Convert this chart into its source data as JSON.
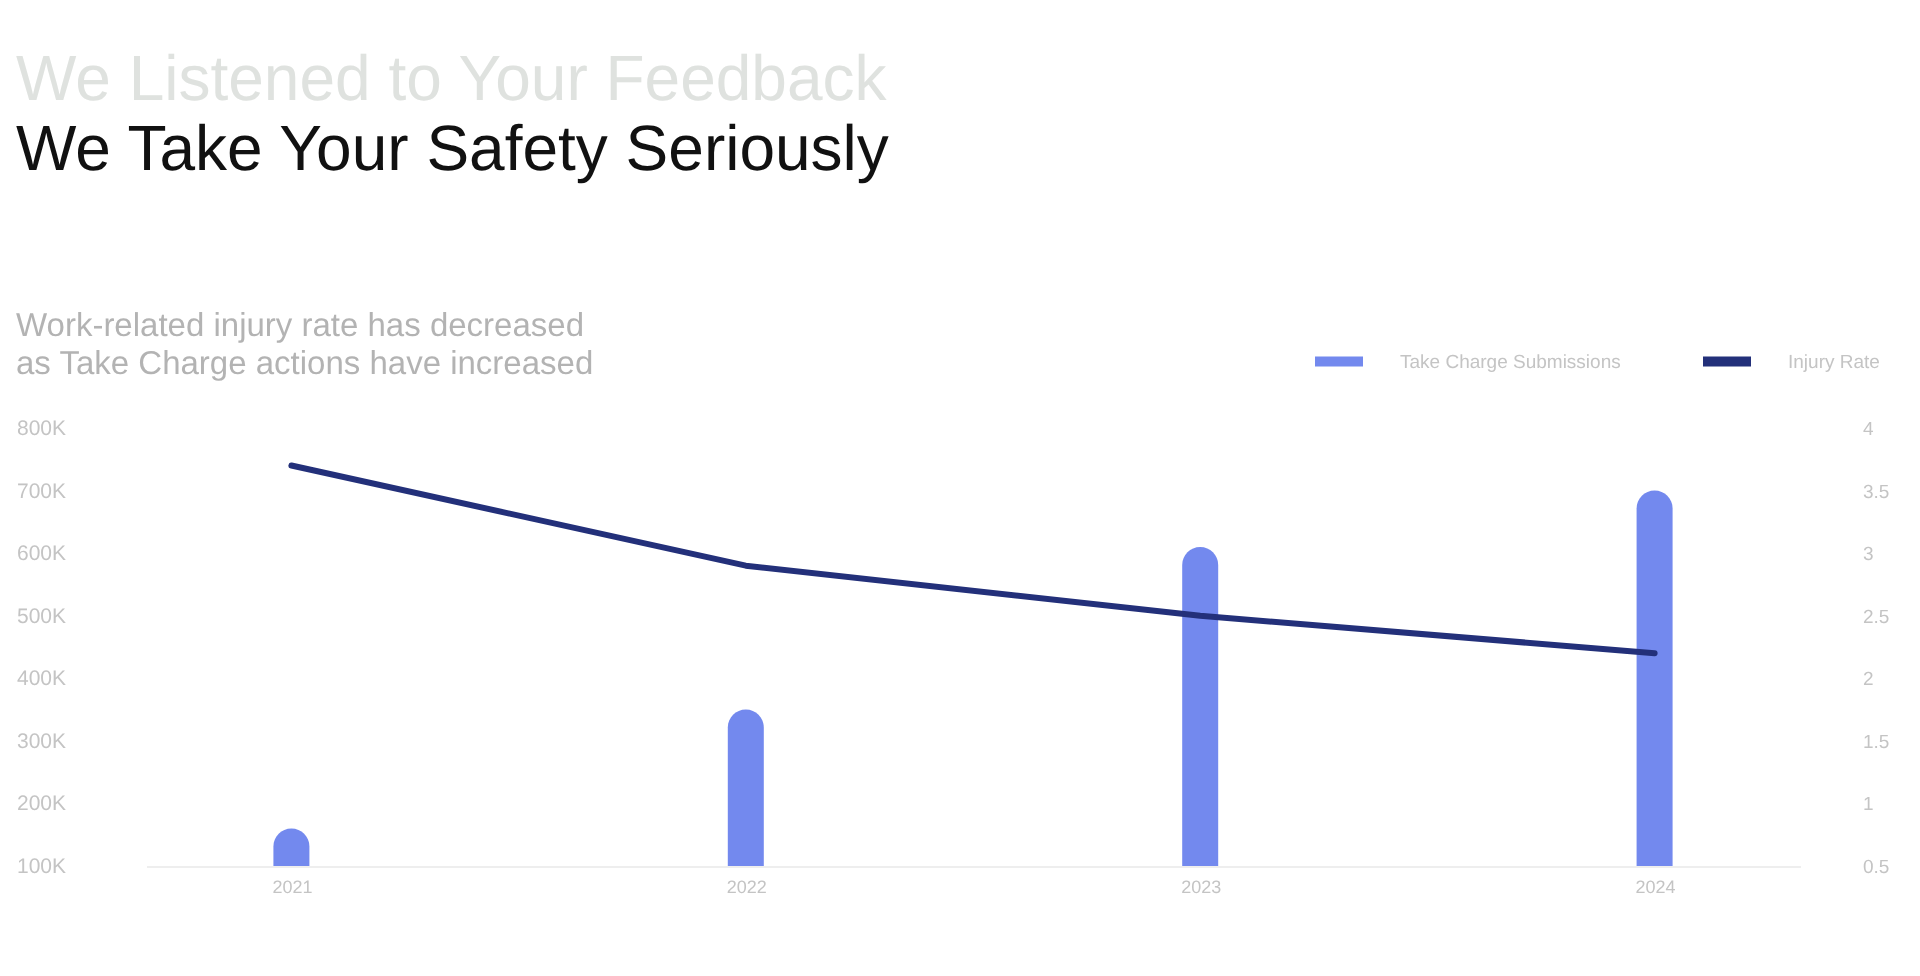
{
  "chart_data": {
    "type": "bar",
    "title": "We Take Your Safety Seriously",
    "subtitle": "Work-related injury rate has decreased as Take Charge actions have increased",
    "annotations": [
      "We Listened to Your Feedback"
    ],
    "categories": [
      "2021",
      "2022",
      "2023",
      "2024"
    ],
    "series": [
      {
        "name": "Take Charge Submissions",
        "color": "#7389ee",
        "values": [
          160000,
          350000,
          610000,
          700000
        ]
      },
      {
        "name": "Injury Rate",
        "type": "line",
        "axis": "y2",
        "color": "#23307a",
        "values": [
          3.7,
          2.9,
          2.5,
          2.2
        ]
      }
    ],
    "ylim": [
      100000,
      800000
    ],
    "yticks": [
      {
        "value": 100000,
        "label": "100K"
      },
      {
        "value": 200000,
        "label": "200K"
      },
      {
        "value": 300000,
        "label": "300K"
      },
      {
        "value": 400000,
        "label": "400K"
      },
      {
        "value": 500000,
        "label": "500K"
      },
      {
        "value": 600000,
        "label": "600K"
      },
      {
        "value": 700000,
        "label": "700K"
      },
      {
        "value": 800000,
        "label": "800K"
      }
    ],
    "y2lim": [
      0.5,
      4
    ],
    "y2ticks": [
      0.5,
      1,
      1.5,
      2,
      2.5,
      3,
      3.5,
      4
    ],
    "legend": "top right"
  }
}
